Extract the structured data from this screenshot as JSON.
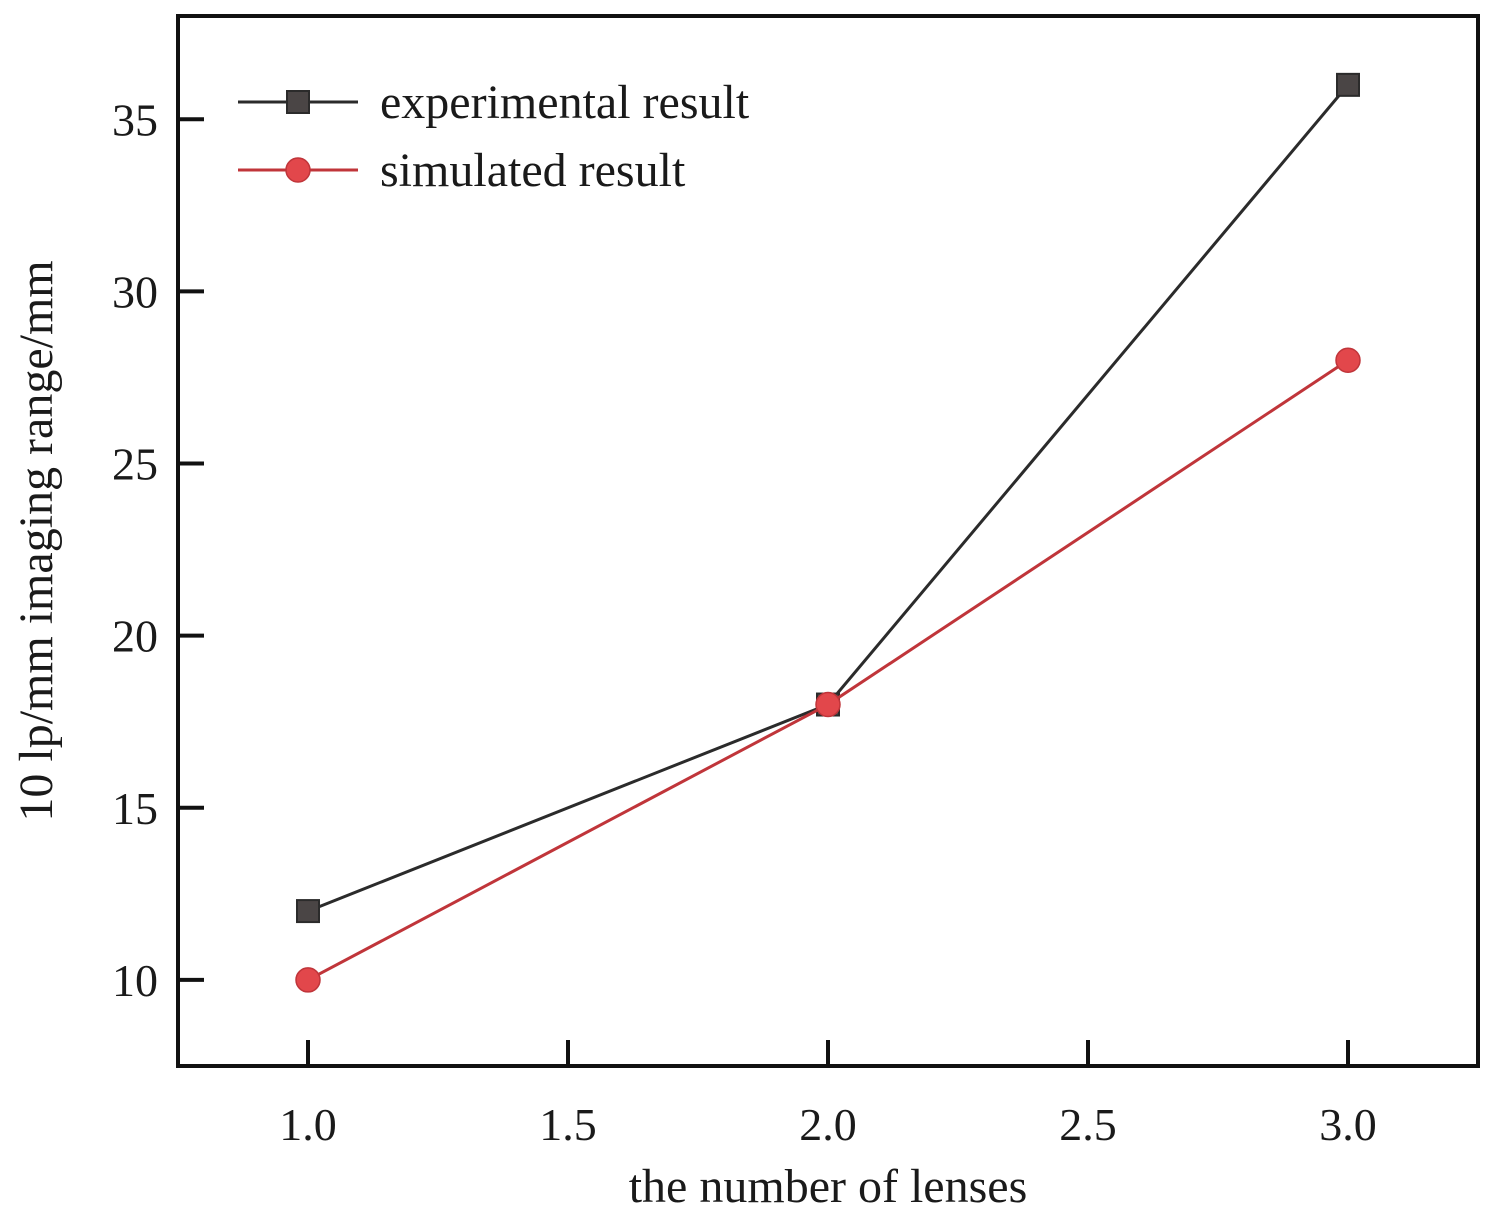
{
  "chart_data": {
    "type": "line",
    "xlabel": "the number of lenses",
    "ylabel": "10 lp/mm imaging range/mm",
    "xlim": [
      0.75,
      3.25
    ],
    "ylim": [
      7.5,
      38
    ],
    "x_ticks": [
      {
        "value": 1.0,
        "label": "1.0"
      },
      {
        "value": 1.5,
        "label": "1.5"
      },
      {
        "value": 2.0,
        "label": "2.0"
      },
      {
        "value": 2.5,
        "label": "2.5"
      },
      {
        "value": 3.0,
        "label": "3.0"
      }
    ],
    "y_ticks": [
      {
        "value": 10,
        "label": "10"
      },
      {
        "value": 15,
        "label": "15"
      },
      {
        "value": 20,
        "label": "20"
      },
      {
        "value": 25,
        "label": "25"
      },
      {
        "value": 30,
        "label": "30"
      },
      {
        "value": 35,
        "label": "35"
      }
    ],
    "grid": false,
    "legend_position": "top-left",
    "series": [
      {
        "name": "experimental result",
        "x": [
          1.0,
          2.0,
          3.0
        ],
        "y": [
          12,
          18,
          36
        ],
        "marker": "square",
        "line_color": "#2b2b2b",
        "marker_color": "#4a4545"
      },
      {
        "name": "simulated result",
        "x": [
          1.0,
          2.0,
          3.0
        ],
        "y": [
          10,
          18,
          28
        ],
        "marker": "circle",
        "line_color": "#c0353a",
        "marker_color": "#e2474b"
      }
    ]
  }
}
